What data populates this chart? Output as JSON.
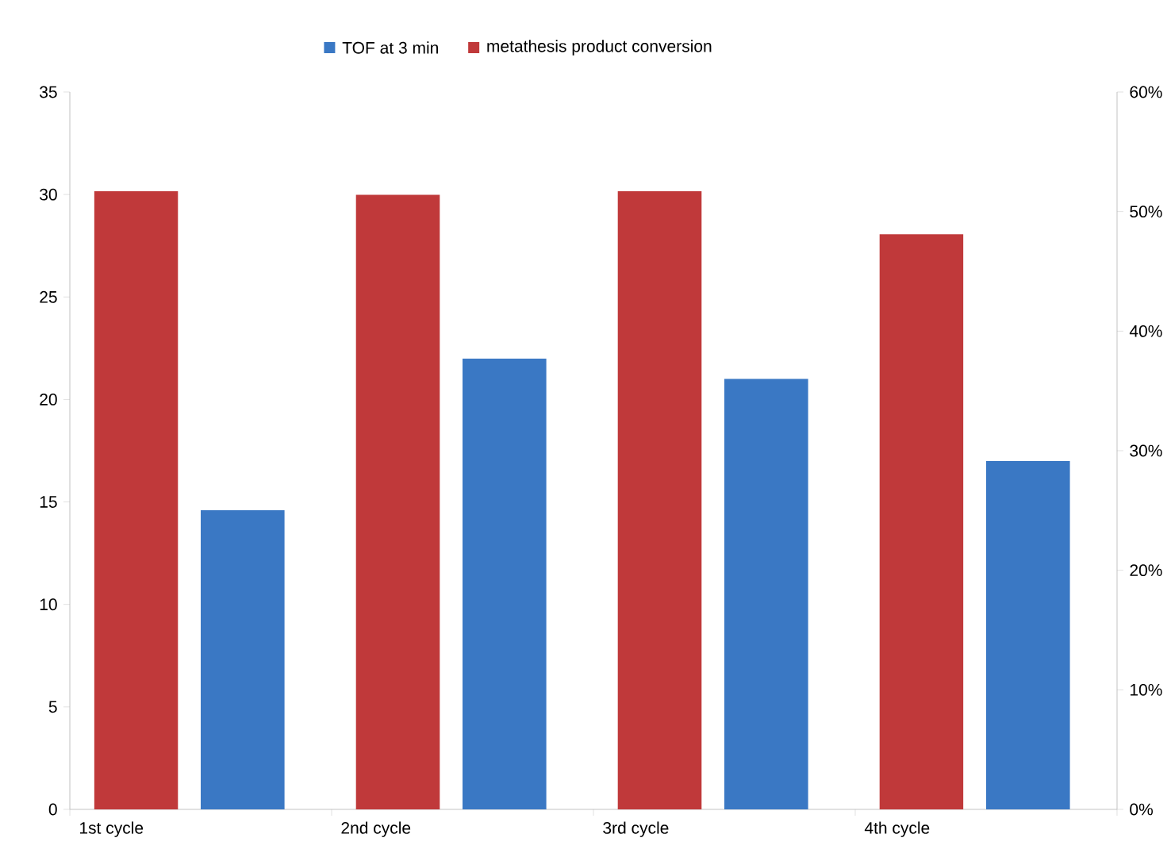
{
  "chart_data": {
    "type": "bar",
    "categories": [
      "1st cycle",
      "2nd cycle",
      "3rd cycle",
      "4th cycle"
    ],
    "series": [
      {
        "name": "TOF at 3 min",
        "color": "#3a78c4",
        "values": [
          14.6,
          22.0,
          21.0,
          17.0
        ]
      },
      {
        "name": "metathesis product conversion",
        "color": "#c0393a",
        "axis": "y2",
        "values": [
          51.7,
          51.4,
          51.7,
          48.1
        ]
      }
    ],
    "ylim": [
      0,
      35
    ],
    "yticks": [
      0,
      5,
      10,
      15,
      20,
      25,
      30,
      35
    ],
    "y2lim": [
      0,
      60
    ],
    "y2ticks": [
      {
        "value": 0,
        "label": "0%"
      },
      {
        "value": 10,
        "label": "10%"
      },
      {
        "value": 20,
        "label": "20%"
      },
      {
        "value": 30,
        "label": "30%"
      },
      {
        "value": 40,
        "label": "40%"
      },
      {
        "value": 50,
        "label": "50%"
      },
      {
        "value": 60,
        "label": "60%"
      }
    ],
    "legend": "top"
  }
}
